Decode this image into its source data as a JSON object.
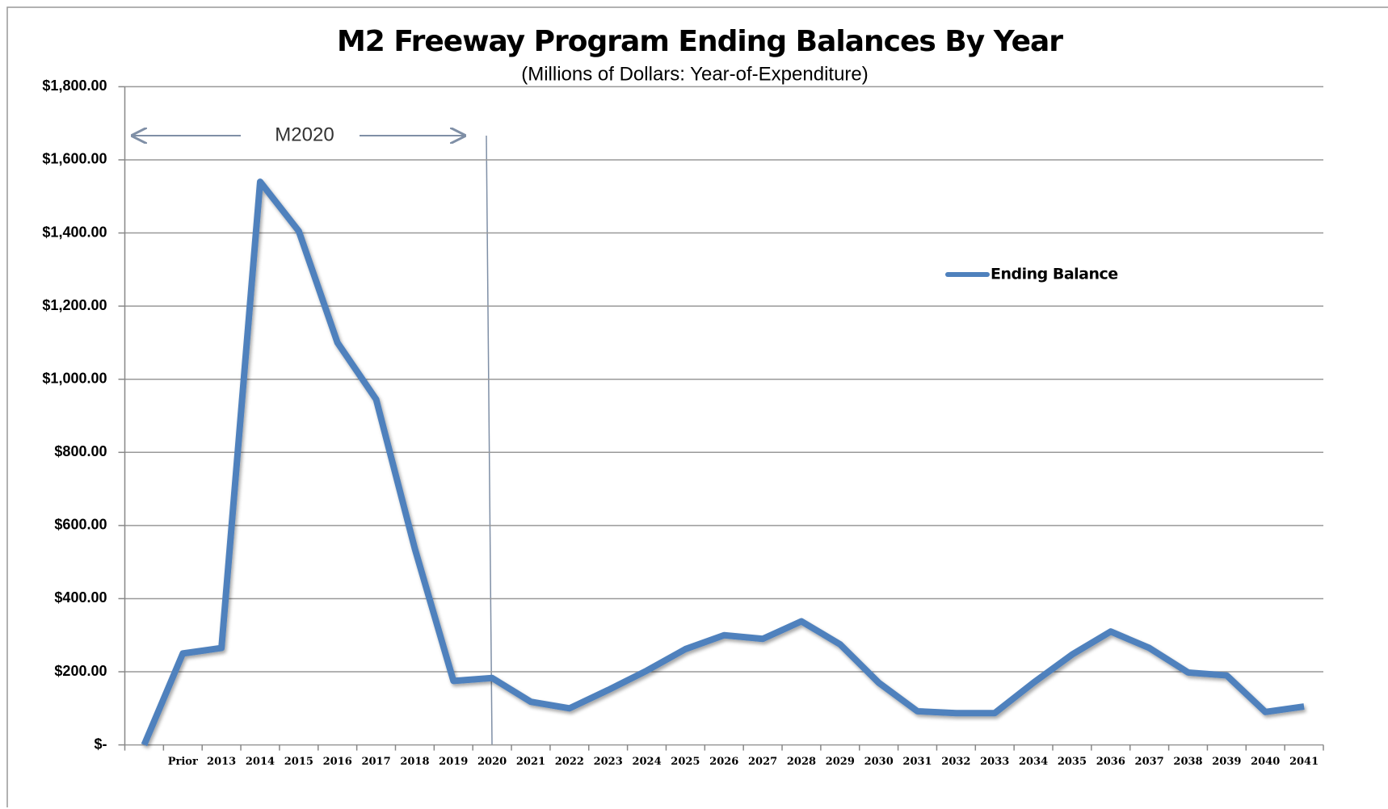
{
  "chart_data": {
    "type": "line",
    "title": "M2 Freeway Program Ending Balances By Year",
    "subtitle": "(Millions of Dollars: Year-of-Expenditure)",
    "annotation": "M2020",
    "categories": [
      null,
      "Prior",
      "2013",
      "2014",
      "2015",
      "2016",
      "2017",
      "2018",
      "2019",
      "2020",
      "2021",
      "2022",
      "2023",
      "2024",
      "2025",
      "2026",
      "2027",
      "2028",
      "2029",
      "2030",
      "2031",
      "2032",
      "2033",
      "2034",
      "2035",
      "2036",
      "2037",
      "2038",
      "2039",
      "2040",
      "2041"
    ],
    "series": [
      {
        "name": "Ending Balance",
        "color": "#4f81bd",
        "values": [
          0,
          250,
          265,
          1540,
          1405,
          1100,
          945,
          537,
          175,
          183,
          118,
          100,
          150,
          203,
          262,
          300,
          290,
          338,
          275,
          170,
          92,
          87,
          87,
          170,
          247,
          310,
          265,
          198,
          190,
          90,
          105
        ]
      }
    ],
    "ylim": [
      0,
      1800
    ],
    "yticks": [
      {
        "value": 0,
        "label": "$-"
      },
      {
        "value": 200,
        "label": "$200.00"
      },
      {
        "value": 400,
        "label": "$400.00"
      },
      {
        "value": 600,
        "label": "$600.00"
      },
      {
        "value": 800,
        "label": "$800.00"
      },
      {
        "value": 1000,
        "label": "$1,000.00"
      },
      {
        "value": 1200,
        "label": "$1,200.00"
      },
      {
        "value": 1400,
        "label": "$1,400.00"
      },
      {
        "value": 1600,
        "label": "$1,600.00"
      },
      {
        "value": 1800,
        "label": "$1,800.00"
      }
    ],
    "grid": true
  }
}
